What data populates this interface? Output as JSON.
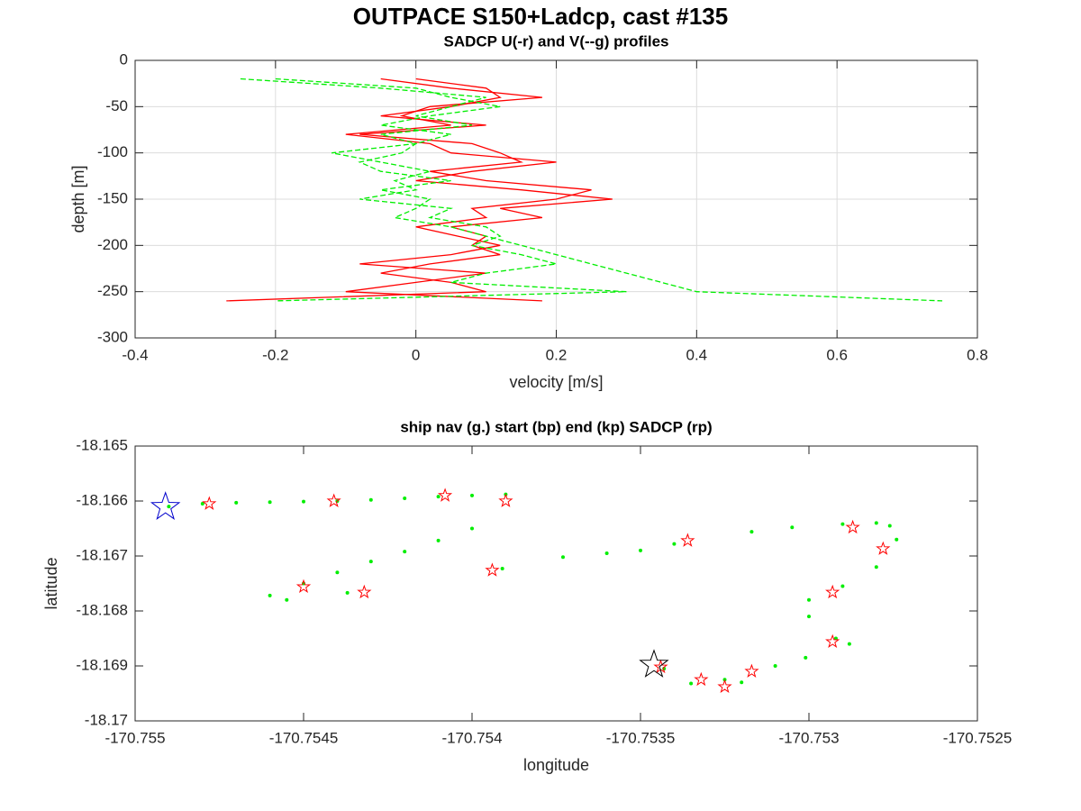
{
  "title": "OUTPACE S150+Ladcp, cast #135",
  "chart_data": [
    {
      "type": "line",
      "title": "SADCP U(-r) and V(--g) profiles",
      "xlabel": "velocity [m/s]",
      "ylabel": "depth [m]",
      "xlim": [
        -0.4,
        0.8
      ],
      "xticks": [
        -0.4,
        -0.2,
        0,
        0.2,
        0.4,
        0.6,
        0.8
      ],
      "ylim": [
        -300,
        0
      ],
      "yticks": [
        0,
        -50,
        -100,
        -150,
        -200,
        -250,
        -300
      ],
      "grid": true,
      "y": [
        -20,
        -30,
        -40,
        -50,
        -60,
        -70,
        -80,
        -90,
        -100,
        -110,
        -120,
        -130,
        -140,
        -150,
        -160,
        -170,
        -180,
        -190,
        -200,
        -210,
        -220,
        -230,
        -240,
        -250,
        -260
      ],
      "series": [
        {
          "color": "#ff0000",
          "style": "solid",
          "values": [
            -0.05,
            0.05,
            0.18,
            0.02,
            -0.02,
            0.05,
            -0.1,
            0.02,
            0.05,
            0.2,
            0.08,
            0.0,
            0.15,
            0.28,
            0.12,
            0.18,
            0.05,
            0.1,
            0.08,
            0.12,
            0.02,
            -0.05,
            0.05,
            0.1,
            -0.27
          ]
        },
        {
          "color": "#ff0000",
          "style": "solid",
          "values": [
            0.0,
            0.1,
            0.12,
            0.05,
            -0.05,
            0.1,
            -0.08,
            0.08,
            0.12,
            0.15,
            0.02,
            0.1,
            0.25,
            0.2,
            0.08,
            0.1,
            0.0,
            0.06,
            0.12,
            0.05,
            -0.08,
            0.1,
            0.0,
            -0.1,
            0.18
          ]
        },
        {
          "color": "#00ee00",
          "style": "dashed",
          "values": [
            -0.25,
            -0.05,
            0.1,
            0.05,
            0.0,
            0.08,
            -0.05,
            0.0,
            -0.02,
            -0.08,
            -0.05,
            0.05,
            -0.05,
            0.02,
            0.0,
            -0.03,
            0.05,
            0.1,
            0.15,
            0.2,
            0.25,
            0.3,
            0.35,
            0.4,
            0.75
          ]
        },
        {
          "color": "#00ee00",
          "style": "dashed",
          "values": [
            -0.2,
            0.0,
            0.05,
            0.12,
            0.02,
            -0.05,
            0.05,
            0.0,
            -0.12,
            -0.05,
            0.02,
            -0.03,
            0.0,
            -0.08,
            0.05,
            0.02,
            0.1,
            0.12,
            0.08,
            0.15,
            0.2,
            0.1,
            0.05,
            0.3,
            -0.2
          ]
        }
      ]
    },
    {
      "type": "scatter",
      "title": "ship nav (g.) start (bp) end (kp) SADCP (rp)",
      "xlabel": "longitude",
      "ylabel": "latitude",
      "xlim": [
        -170.755,
        -170.7525
      ],
      "xticks": [
        -170.755,
        -170.7545,
        -170.754,
        -170.7535,
        -170.753,
        -170.7525
      ],
      "ylim": [
        -18.17,
        -18.165
      ],
      "yticks": [
        -18.165,
        -18.166,
        -18.167,
        -18.168,
        -18.169,
        -18.17
      ],
      "grid": false,
      "series": [
        {
          "color": "#00ee00",
          "marker": "dot",
          "x": [
            -170.7549,
            -170.7548,
            -170.7547,
            -170.7546,
            -170.7545,
            -170.7544,
            -170.7543,
            -170.7542,
            -170.7541,
            -170.754,
            -170.7539,
            -170.754,
            -170.7541,
            -170.7542,
            -170.7543,
            -170.7544,
            -170.7545,
            -170.7546,
            -170.75455,
            -170.75437,
            -170.75391,
            -170.75373,
            -170.7536,
            -170.7535,
            -170.7534,
            -170.75317,
            -170.75305,
            -170.7529,
            -170.7528,
            -170.75276,
            -170.75274,
            -170.7528,
            -170.7529,
            -170.753,
            -170.753,
            -170.75292,
            -170.75288,
            -170.75301,
            -170.7531,
            -170.7532,
            -170.75325,
            -170.75335,
            -170.75343
          ],
          "values": [
            -18.1661,
            -18.16605,
            -18.16603,
            -18.16602,
            -18.16601,
            -18.166,
            -18.16598,
            -18.16595,
            -18.16592,
            -18.1659,
            -18.16588,
            -18.1665,
            -18.16672,
            -18.16692,
            -18.1671,
            -18.1673,
            -18.1675,
            -18.16772,
            -18.1678,
            -18.16767,
            -18.16723,
            -18.16702,
            -18.16695,
            -18.1669,
            -18.16678,
            -18.16656,
            -18.16648,
            -18.16642,
            -18.1664,
            -18.16645,
            -18.1667,
            -18.1672,
            -18.16755,
            -18.1678,
            -18.1681,
            -18.1685,
            -18.1686,
            -18.16885,
            -18.169,
            -18.1693,
            -18.16925,
            -18.16932,
            -18.16905
          ]
        },
        {
          "color": "#ff0000",
          "marker": "star",
          "size": 7,
          "x": [
            -170.75478,
            -170.75441,
            -170.75408,
            -170.7539,
            -170.75336,
            -170.75287,
            -170.75278,
            -170.75394,
            -170.7545,
            -170.75432,
            -170.75293,
            -170.75293,
            -170.75344,
            -170.75332,
            -170.75325,
            -170.75317
          ],
          "values": [
            -18.16605,
            -18.166,
            -18.1659,
            -18.166,
            -18.16672,
            -18.16648,
            -18.16687,
            -18.16726,
            -18.16756,
            -18.16766,
            -18.16766,
            -18.16856,
            -18.16902,
            -18.16925,
            -18.16938,
            -18.1691
          ]
        },
        {
          "color": "#0000cc",
          "marker": "star",
          "size": 16,
          "x": [
            -170.75491
          ],
          "values": [
            -18.16611
          ]
        },
        {
          "color": "#000000",
          "marker": "star",
          "size": 16,
          "x": [
            -170.75346
          ],
          "values": [
            -18.16898
          ]
        }
      ]
    }
  ]
}
